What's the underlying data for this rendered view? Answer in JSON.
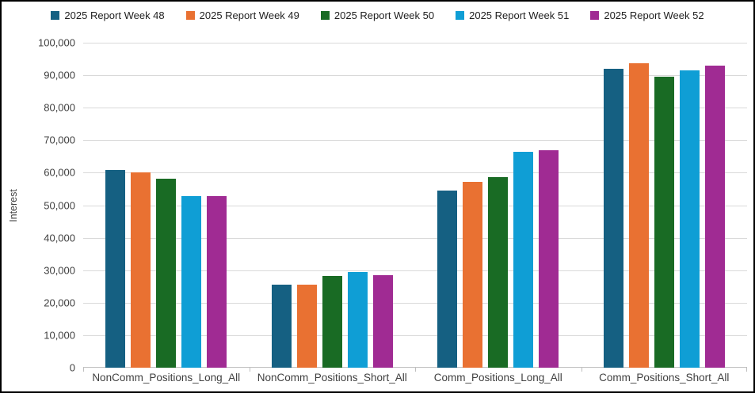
{
  "chart_data": {
    "type": "bar",
    "title": "",
    "xlabel": "",
    "ylabel": "Interest",
    "ylim": [
      0,
      100000
    ],
    "ytick_step": 10000,
    "ytick_labels": [
      "0",
      "10,000",
      "20,000",
      "30,000",
      "40,000",
      "50,000",
      "60,000",
      "70,000",
      "80,000",
      "90,000",
      "100,000"
    ],
    "grid": true,
    "legend_position": "top",
    "categories": [
      "NonComm_Positions_Long_All",
      "NonComm_Positions_Short_All",
      "Comm_Positions_Long_All",
      "Comm_Positions_Short_All"
    ],
    "series": [
      {
        "name": "2025 Report Week 48",
        "color": "#156082",
        "values": [
          60800,
          25600,
          54600,
          91900
        ]
      },
      {
        "name": "2025 Report Week 49",
        "color": "#E97132",
        "values": [
          60100,
          25500,
          57200,
          93600
        ]
      },
      {
        "name": "2025 Report Week 50",
        "color": "#196B24",
        "values": [
          58200,
          28300,
          58700,
          89600
        ]
      },
      {
        "name": "2025 Report Week 51",
        "color": "#0F9ED5",
        "values": [
          52900,
          29400,
          66400,
          91400
        ]
      },
      {
        "name": "2025 Report Week 52",
        "color": "#A02B93",
        "values": [
          52900,
          28500,
          67000,
          92900
        ]
      }
    ]
  }
}
